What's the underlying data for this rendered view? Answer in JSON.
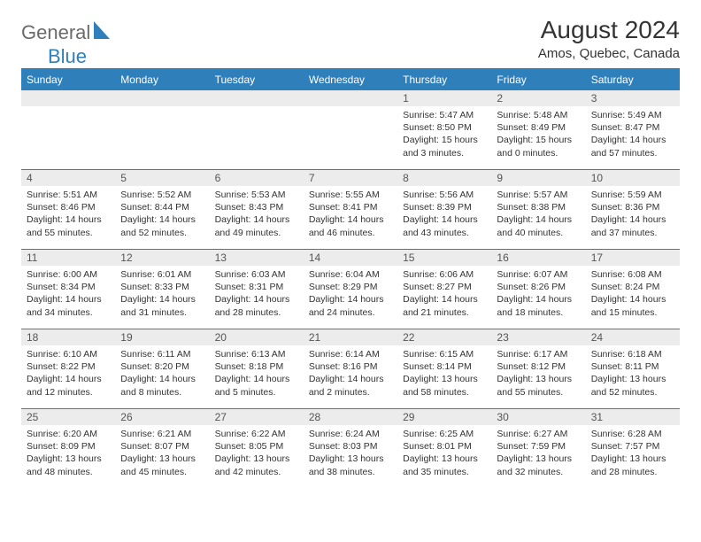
{
  "logo": {
    "text_a": "General",
    "text_b": "Blue"
  },
  "title": "August 2024",
  "location": "Amos, Quebec, Canada",
  "colors": {
    "accent": "#2f7fbb",
    "daynum_bg": "#ececec",
    "text": "#333333",
    "bg": "#ffffff"
  },
  "day_headers": [
    "Sunday",
    "Monday",
    "Tuesday",
    "Wednesday",
    "Thursday",
    "Friday",
    "Saturday"
  ],
  "grid": [
    [
      null,
      null,
      null,
      null,
      {
        "n": "1",
        "sunrise": "5:47 AM",
        "sunset": "8:50 PM",
        "daylight": "15 hours and 3 minutes."
      },
      {
        "n": "2",
        "sunrise": "5:48 AM",
        "sunset": "8:49 PM",
        "daylight": "15 hours and 0 minutes."
      },
      {
        "n": "3",
        "sunrise": "5:49 AM",
        "sunset": "8:47 PM",
        "daylight": "14 hours and 57 minutes."
      }
    ],
    [
      {
        "n": "4",
        "sunrise": "5:51 AM",
        "sunset": "8:46 PM",
        "daylight": "14 hours and 55 minutes."
      },
      {
        "n": "5",
        "sunrise": "5:52 AM",
        "sunset": "8:44 PM",
        "daylight": "14 hours and 52 minutes."
      },
      {
        "n": "6",
        "sunrise": "5:53 AM",
        "sunset": "8:43 PM",
        "daylight": "14 hours and 49 minutes."
      },
      {
        "n": "7",
        "sunrise": "5:55 AM",
        "sunset": "8:41 PM",
        "daylight": "14 hours and 46 minutes."
      },
      {
        "n": "8",
        "sunrise": "5:56 AM",
        "sunset": "8:39 PM",
        "daylight": "14 hours and 43 minutes."
      },
      {
        "n": "9",
        "sunrise": "5:57 AM",
        "sunset": "8:38 PM",
        "daylight": "14 hours and 40 minutes."
      },
      {
        "n": "10",
        "sunrise": "5:59 AM",
        "sunset": "8:36 PM",
        "daylight": "14 hours and 37 minutes."
      }
    ],
    [
      {
        "n": "11",
        "sunrise": "6:00 AM",
        "sunset": "8:34 PM",
        "daylight": "14 hours and 34 minutes."
      },
      {
        "n": "12",
        "sunrise": "6:01 AM",
        "sunset": "8:33 PM",
        "daylight": "14 hours and 31 minutes."
      },
      {
        "n": "13",
        "sunrise": "6:03 AM",
        "sunset": "8:31 PM",
        "daylight": "14 hours and 28 minutes."
      },
      {
        "n": "14",
        "sunrise": "6:04 AM",
        "sunset": "8:29 PM",
        "daylight": "14 hours and 24 minutes."
      },
      {
        "n": "15",
        "sunrise": "6:06 AM",
        "sunset": "8:27 PM",
        "daylight": "14 hours and 21 minutes."
      },
      {
        "n": "16",
        "sunrise": "6:07 AM",
        "sunset": "8:26 PM",
        "daylight": "14 hours and 18 minutes."
      },
      {
        "n": "17",
        "sunrise": "6:08 AM",
        "sunset": "8:24 PM",
        "daylight": "14 hours and 15 minutes."
      }
    ],
    [
      {
        "n": "18",
        "sunrise": "6:10 AM",
        "sunset": "8:22 PM",
        "daylight": "14 hours and 12 minutes."
      },
      {
        "n": "19",
        "sunrise": "6:11 AM",
        "sunset": "8:20 PM",
        "daylight": "14 hours and 8 minutes."
      },
      {
        "n": "20",
        "sunrise": "6:13 AM",
        "sunset": "8:18 PM",
        "daylight": "14 hours and 5 minutes."
      },
      {
        "n": "21",
        "sunrise": "6:14 AM",
        "sunset": "8:16 PM",
        "daylight": "14 hours and 2 minutes."
      },
      {
        "n": "22",
        "sunrise": "6:15 AM",
        "sunset": "8:14 PM",
        "daylight": "13 hours and 58 minutes."
      },
      {
        "n": "23",
        "sunrise": "6:17 AM",
        "sunset": "8:12 PM",
        "daylight": "13 hours and 55 minutes."
      },
      {
        "n": "24",
        "sunrise": "6:18 AM",
        "sunset": "8:11 PM",
        "daylight": "13 hours and 52 minutes."
      }
    ],
    [
      {
        "n": "25",
        "sunrise": "6:20 AM",
        "sunset": "8:09 PM",
        "daylight": "13 hours and 48 minutes."
      },
      {
        "n": "26",
        "sunrise": "6:21 AM",
        "sunset": "8:07 PM",
        "daylight": "13 hours and 45 minutes."
      },
      {
        "n": "27",
        "sunrise": "6:22 AM",
        "sunset": "8:05 PM",
        "daylight": "13 hours and 42 minutes."
      },
      {
        "n": "28",
        "sunrise": "6:24 AM",
        "sunset": "8:03 PM",
        "daylight": "13 hours and 38 minutes."
      },
      {
        "n": "29",
        "sunrise": "6:25 AM",
        "sunset": "8:01 PM",
        "daylight": "13 hours and 35 minutes."
      },
      {
        "n": "30",
        "sunrise": "6:27 AM",
        "sunset": "7:59 PM",
        "daylight": "13 hours and 32 minutes."
      },
      {
        "n": "31",
        "sunrise": "6:28 AM",
        "sunset": "7:57 PM",
        "daylight": "13 hours and 28 minutes."
      }
    ]
  ],
  "labels": {
    "sunrise": "Sunrise: ",
    "sunset": "Sunset: ",
    "daylight": "Daylight: "
  }
}
